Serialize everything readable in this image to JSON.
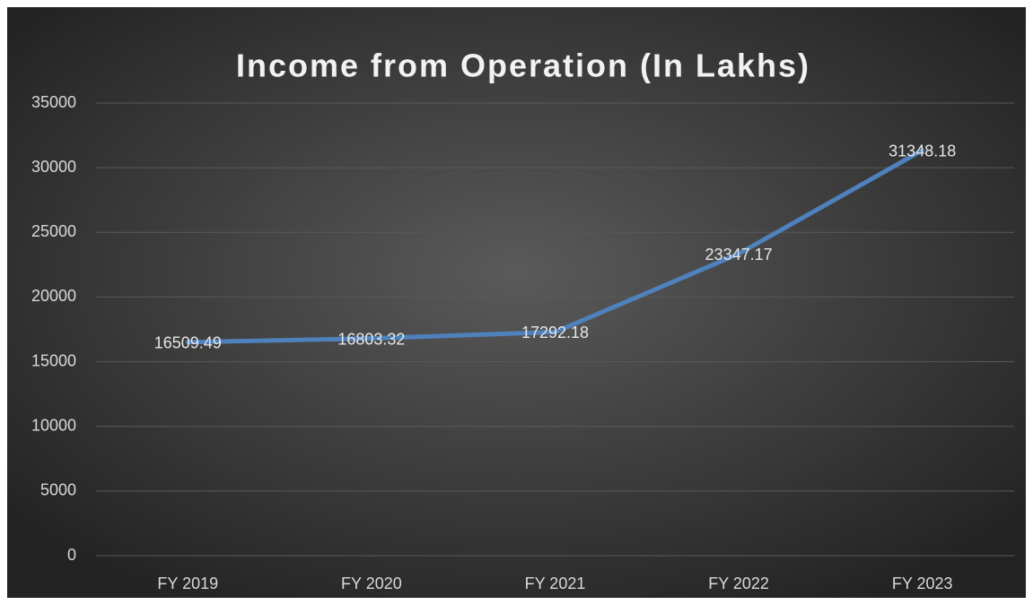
{
  "chart_data": {
    "type": "line",
    "title": "Income from Operation (In Lakhs)",
    "categories": [
      "FY 2019",
      "FY 2020",
      "FY 2021",
      "FY 2022",
      "FY 2023"
    ],
    "series": [
      {
        "name": "Income from Operation",
        "color": "#4f81bd",
        "values": [
          16509.49,
          16803.32,
          17292.18,
          23347.17,
          31348.18
        ]
      }
    ],
    "ylim": [
      0,
      35000
    ],
    "yticks": [
      0,
      5000,
      10000,
      15000,
      20000,
      25000,
      30000,
      35000
    ],
    "grid": true
  }
}
